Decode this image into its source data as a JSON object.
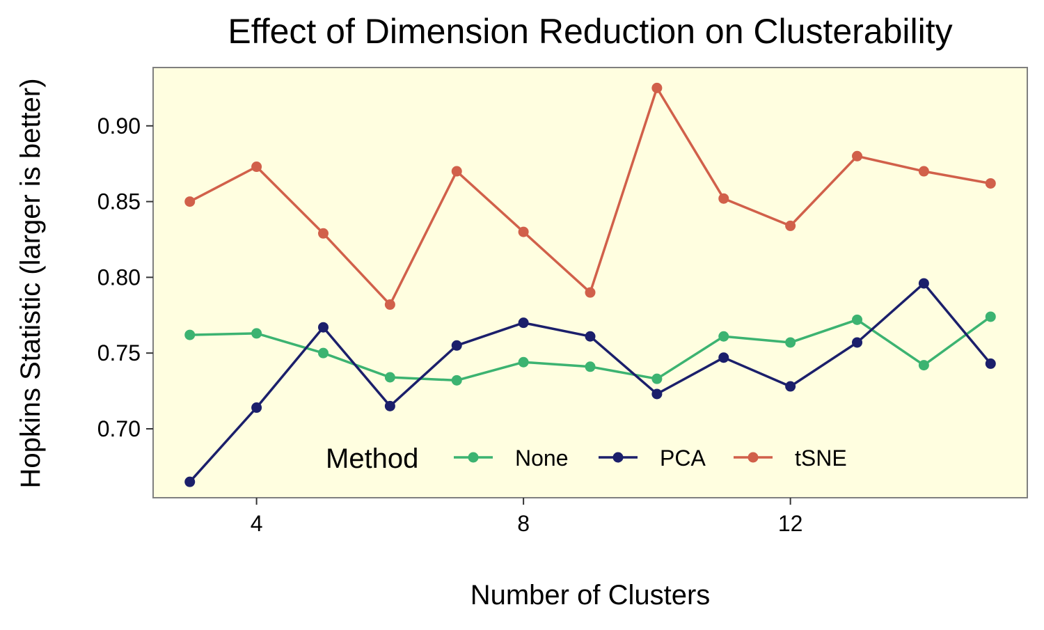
{
  "chart_data": {
    "type": "line",
    "title": "Effect of Dimension Reduction on Clusterability",
    "xlabel": "Number of Clusters",
    "ylabel": "Hopkins Statistic (larger is better)",
    "x": [
      3,
      4,
      5,
      6,
      7,
      8,
      9,
      10,
      11,
      12,
      13,
      14,
      15
    ],
    "xlim": [
      2.45,
      15.55
    ],
    "ylim": [
      0.6545,
      0.9385
    ],
    "xticks": [
      4,
      8,
      12
    ],
    "xtick_labels": [
      "4",
      "8",
      "12"
    ],
    "yticks": [
      0.7,
      0.75,
      0.8,
      0.85,
      0.9
    ],
    "ytick_labels": [
      "0.70",
      "0.75",
      "0.80",
      "0.85",
      "0.90"
    ],
    "grid": false,
    "background": "#FFFEE0",
    "legend": {
      "title": "Method",
      "position": "bottom-inside",
      "entries": [
        "None",
        "PCA",
        "tSNE"
      ]
    },
    "series": [
      {
        "name": "None",
        "color": "#3CB371",
        "values": [
          0.762,
          0.763,
          0.75,
          0.734,
          0.732,
          0.744,
          0.741,
          0.733,
          0.761,
          0.757,
          0.772,
          0.742,
          0.774
        ]
      },
      {
        "name": "PCA",
        "color": "#1B1F6B",
        "values": [
          0.665,
          0.714,
          0.767,
          0.715,
          0.755,
          0.77,
          0.761,
          0.723,
          0.747,
          0.728,
          0.757,
          0.796,
          0.743
        ]
      },
      {
        "name": "tSNE",
        "color": "#D1604A",
        "values": [
          0.85,
          0.873,
          0.829,
          0.782,
          0.87,
          0.83,
          0.79,
          0.925,
          0.852,
          0.834,
          0.88,
          0.87,
          0.862
        ]
      }
    ]
  }
}
